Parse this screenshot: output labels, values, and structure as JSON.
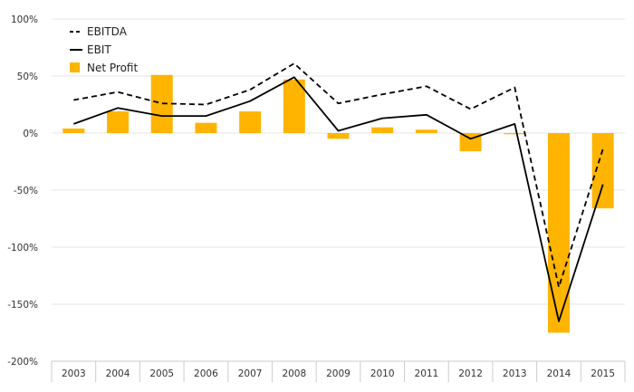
{
  "chart_data": {
    "type": "bar",
    "title": "",
    "xlabel": "",
    "ylabel": "",
    "categories": [
      "2003",
      "2004",
      "2005",
      "2006",
      "2007",
      "2008",
      "2009",
      "2010",
      "2011",
      "2012",
      "2013",
      "2014",
      "2015"
    ],
    "ylim": [
      -200,
      100
    ],
    "yticks": [
      100,
      50,
      0,
      -50,
      -100,
      -150,
      -200
    ],
    "ytick_labels": [
      "100%",
      "50%",
      "0%",
      "-50%",
      "-100%",
      "-150%",
      "-200%"
    ],
    "grid": true,
    "legend_position": "top-left",
    "series": [
      {
        "name": "EBITDA",
        "kind": "line",
        "style": "dashed",
        "color": "#000000",
        "values": [
          29,
          36,
          26,
          25,
          38,
          61,
          26,
          34,
          41,
          21,
          40,
          -135,
          -14
        ]
      },
      {
        "name": "EBIT",
        "kind": "line",
        "style": "solid",
        "color": "#000000",
        "values": [
          8,
          22,
          15,
          15,
          28,
          49,
          2,
          13,
          16,
          -5,
          8,
          -165,
          -45
        ]
      },
      {
        "name": "Net Profit",
        "kind": "bar",
        "color": "#FFB400",
        "values": [
          4,
          19,
          51,
          9,
          19,
          47,
          -5,
          5,
          3,
          -16,
          -1,
          -175,
          -66
        ]
      }
    ]
  }
}
